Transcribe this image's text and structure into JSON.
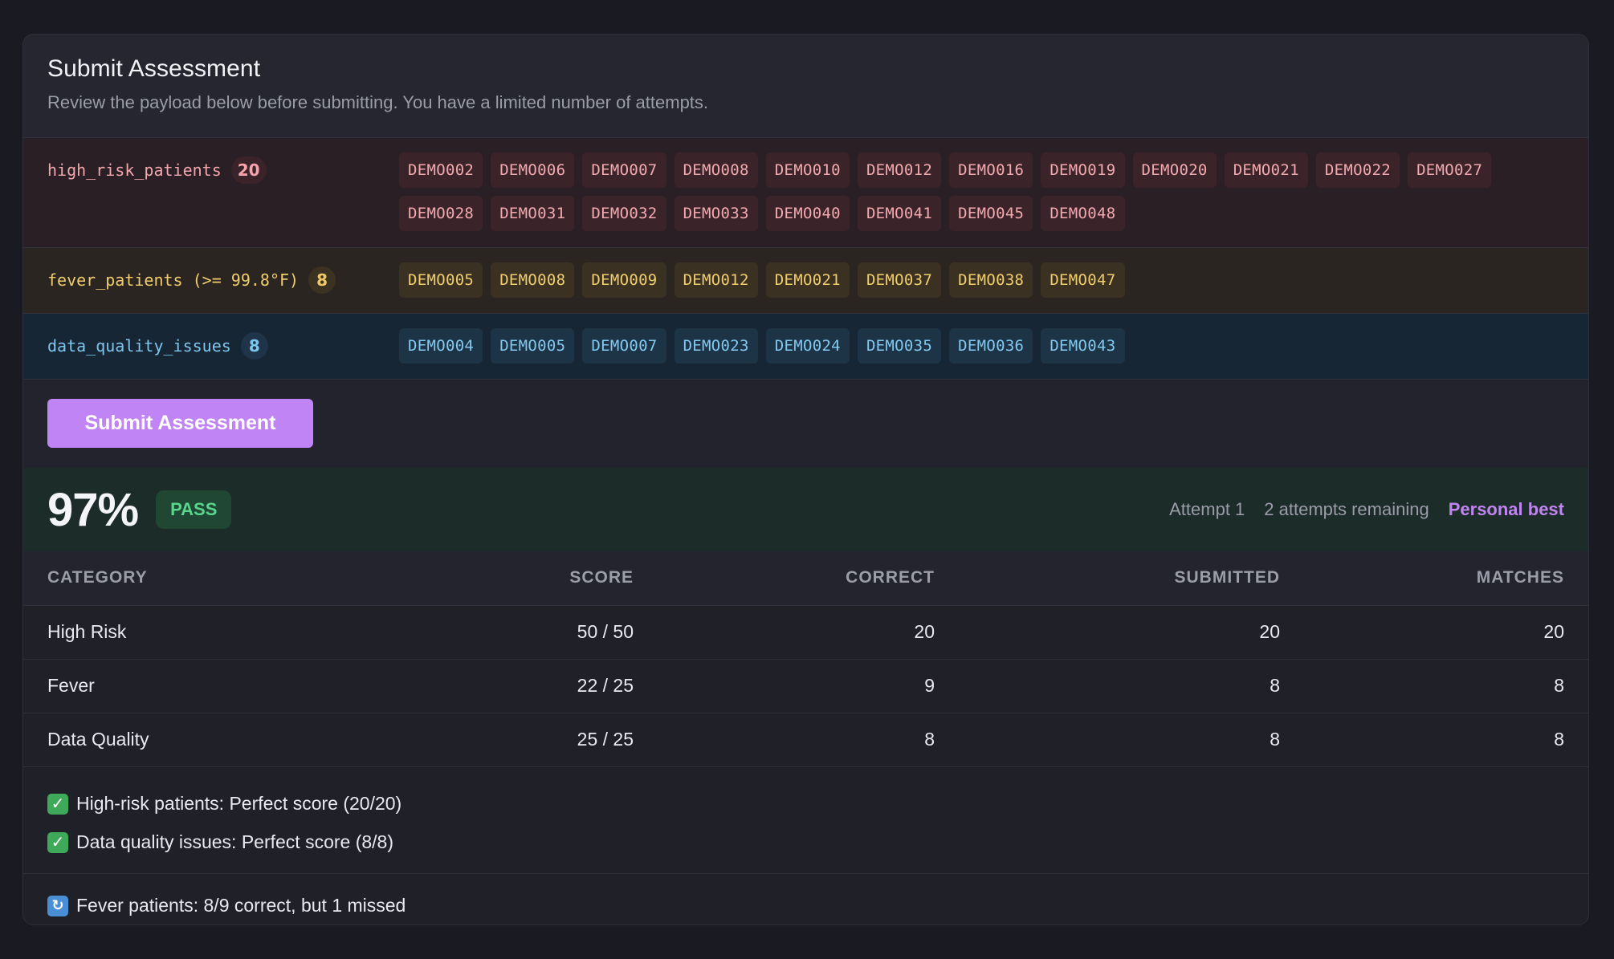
{
  "card": {
    "title": "Submit Assessment",
    "subtitle": "Review the payload below before submitting. You have a limited number of attempts."
  },
  "payload": [
    {
      "key": "high_risk_patients",
      "count": "20",
      "ids": [
        "DEMO002",
        "DEMO006",
        "DEMO007",
        "DEMO008",
        "DEMO010",
        "DEMO012",
        "DEMO016",
        "DEMO019",
        "DEMO020",
        "DEMO021",
        "DEMO022",
        "DEMO027",
        "DEMO028",
        "DEMO031",
        "DEMO032",
        "DEMO033",
        "DEMO040",
        "DEMO041",
        "DEMO045",
        "DEMO048"
      ]
    },
    {
      "key": "fever_patients (>= 99.8°F)",
      "count": "8",
      "ids": [
        "DEMO005",
        "DEMO008",
        "DEMO009",
        "DEMO012",
        "DEMO021",
        "DEMO037",
        "DEMO038",
        "DEMO047"
      ]
    },
    {
      "key": "data_quality_issues",
      "count": "8",
      "ids": [
        "DEMO004",
        "DEMO005",
        "DEMO007",
        "DEMO023",
        "DEMO024",
        "DEMO035",
        "DEMO036",
        "DEMO043"
      ]
    }
  ],
  "submit": {
    "label": "Submit Assessment"
  },
  "result": {
    "percent": "97%",
    "status": "PASS",
    "attempt": "Attempt 1",
    "remaining": "2 attempts remaining",
    "best": "Personal best"
  },
  "table": {
    "headers": [
      "CATEGORY",
      "SCORE",
      "CORRECT",
      "SUBMITTED",
      "MATCHES"
    ],
    "rows": [
      [
        "High Risk",
        "50 / 50",
        "20",
        "20",
        "20"
      ],
      [
        "Fever",
        "22 / 25",
        "9",
        "8",
        "8"
      ],
      [
        "Data Quality",
        "25 / 25",
        "8",
        "8",
        "8"
      ]
    ]
  },
  "notes": {
    "success": [
      "High-risk patients: Perfect score (20/20)",
      "Data quality issues: Perfect score (8/8)"
    ],
    "retry": "Fever patients: 8/9 correct, but 1 missed"
  },
  "colors": {
    "accent": "#c084f5",
    "pass": "#58d68d",
    "high_risk": "#f2a6ad",
    "fever": "#efcd6f",
    "data_quality": "#7fc5ec"
  },
  "icons": {
    "success": "check-mark-icon",
    "retry": "refresh-icon"
  }
}
